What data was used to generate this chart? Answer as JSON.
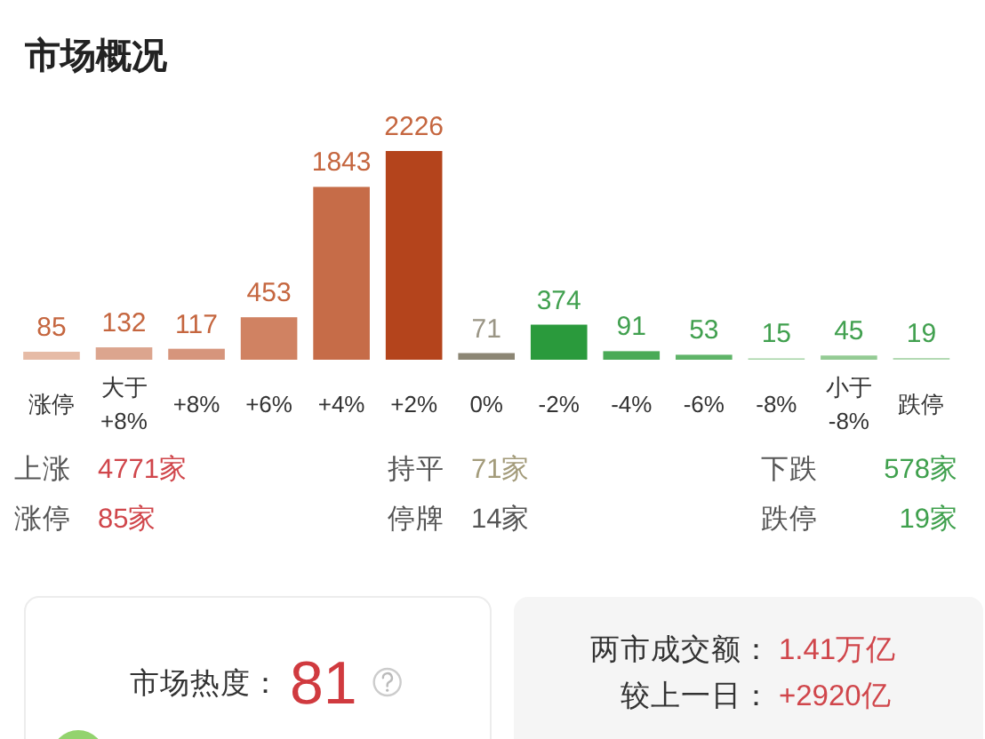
{
  "chart_data": {
    "type": "bar",
    "title": "市场概况",
    "categories": [
      "涨停",
      "大于\n+8%",
      "+8%",
      "+6%",
      "+4%",
      "+2%",
      "0%",
      "-2%",
      "-4%",
      "-6%",
      "-8%",
      "小于\n-8%",
      "跌停"
    ],
    "values": [
      85,
      132,
      117,
      453,
      1843,
      2226,
      71,
      374,
      91,
      53,
      15,
      45,
      19
    ],
    "colors": [
      "#e6bba6",
      "#dca58e",
      "#d6957c",
      "#d08262",
      "#c66c48",
      "#b4441c",
      "#8c8674",
      "#2a9a3c",
      "#4aaa56",
      "#5fb468",
      "#a9d6a9",
      "#94cb94",
      "#b3dab3"
    ],
    "data_labels": true,
    "annotations": [
      "上涨",
      "4771家",
      "涨停",
      "85家",
      "持平",
      "71家",
      "停牌",
      "14家",
      "下跌",
      "578家",
      "跌停",
      "19家",
      "市场热度：",
      "81",
      "两市成交额：",
      "1.41万亿",
      "较上一日：",
      "+2920亿"
    ]
  }
}
